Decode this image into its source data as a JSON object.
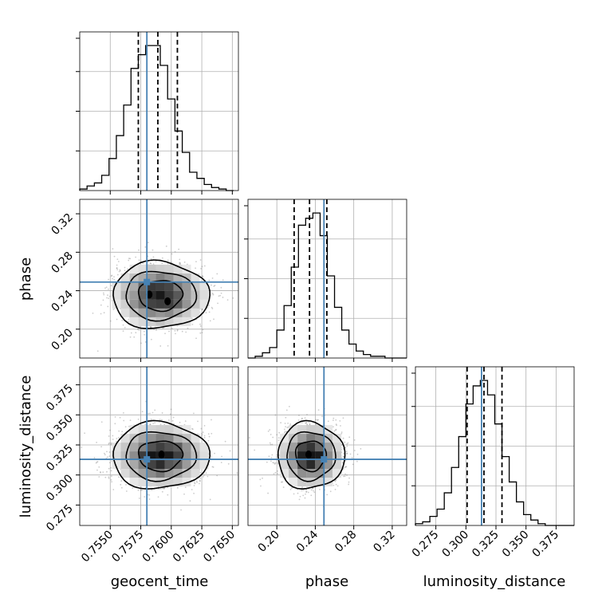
{
  "chart_data": {
    "type": "corner",
    "parameters": [
      "geocent_time",
      "phase",
      "luminosity_distance"
    ],
    "truth_color": "#4682b4",
    "truths": {
      "geocent_time": 0.758,
      "phase": 0.249,
      "luminosity_distance": 0.313
    },
    "quantiles": {
      "geocent_time": [
        0.7573,
        0.7589,
        0.7605
      ],
      "phase": [
        0.218,
        0.234,
        0.252
      ],
      "luminosity_distance": [
        0.301,
        0.315,
        0.33
      ]
    },
    "ranges": {
      "geocent_time": [
        0.7525,
        0.7655
      ],
      "phase": [
        0.17,
        0.335
      ],
      "luminosity_distance": [
        0.258,
        0.39
      ]
    },
    "ticks": {
      "geocent_time": [
        "0.7550",
        "0.7575",
        "0.7600",
        "0.7625",
        "0.7650"
      ],
      "phase": [
        "0.20",
        "0.24",
        "0.28",
        "0.32"
      ],
      "luminosity_distance": [
        "0.275",
        "0.300",
        "0.325",
        "0.350",
        "0.375"
      ]
    },
    "tick_values": {
      "geocent_time": [
        0.755,
        0.7575,
        0.76,
        0.7625,
        0.765
      ],
      "phase": [
        0.2,
        0.24,
        0.28,
        0.32
      ],
      "luminosity_distance": [
        0.275,
        0.3,
        0.325,
        0.35,
        0.375
      ]
    },
    "hist": {
      "geocent_time": {
        "edges": [
          0.7525,
          0.7531,
          0.7537,
          0.7543,
          0.7549,
          0.7555,
          0.7561,
          0.7567,
          0.7573,
          0.7579,
          0.7585,
          0.7591,
          0.7597,
          0.7603,
          0.7609,
          0.7615,
          0.7621,
          0.7627,
          0.7633,
          0.7639,
          0.7645,
          0.7651
        ],
        "counts": [
          1,
          3,
          5,
          10,
          21,
          36,
          56,
          80,
          89,
          95,
          95,
          82,
          60,
          39,
          25,
          12,
          8,
          4,
          2,
          1,
          0
        ]
      },
      "phase": {
        "edges": [
          0.17,
          0.1775,
          0.185,
          0.1925,
          0.2,
          0.2075,
          0.215,
          0.2225,
          0.23,
          0.2375,
          0.245,
          0.2525,
          0.26,
          0.2675,
          0.275,
          0.2825,
          0.29,
          0.2975,
          0.305,
          0.3125,
          0.32,
          0.3275,
          0.335
        ],
        "counts": [
          0,
          1,
          3,
          6,
          16,
          30,
          52,
          76,
          80,
          83,
          70,
          47,
          29,
          16,
          8,
          4,
          2,
          1,
          1,
          0,
          0,
          0
        ]
      },
      "luminosity_distance": {
        "edges": [
          0.258,
          0.264,
          0.27,
          0.276,
          0.282,
          0.288,
          0.294,
          0.3,
          0.306,
          0.312,
          0.318,
          0.324,
          0.33,
          0.336,
          0.342,
          0.348,
          0.354,
          0.36,
          0.366,
          0.372,
          0.378,
          0.384,
          0.39
        ],
        "counts": [
          1,
          2,
          5,
          9,
          18,
          32,
          49,
          67,
          77,
          80,
          72,
          56,
          38,
          24,
          13,
          6,
          3,
          1,
          0,
          0,
          0,
          0
        ]
      }
    },
    "pairs": [
      {
        "x": "geocent_time",
        "y": "phase",
        "center": [
          0.7591,
          0.2352
        ],
        "sigma": [
          0.0018,
          0.0158
        ],
        "levels": [
          1.0,
          1.6,
          2.2
        ],
        "peaks": [
          [
            0.7582,
            0.236
          ],
          [
            0.7597,
            0.229
          ]
        ]
      },
      {
        "x": "geocent_time",
        "y": "luminosity_distance",
        "center": [
          0.7591,
          0.316
        ],
        "sigma": [
          0.0018,
          0.0126
        ],
        "levels": [
          1.0,
          1.6,
          2.2
        ],
        "peaks": [
          [
            0.7592,
            0.317
          ]
        ]
      },
      {
        "x": "phase",
        "y": "luminosity_distance",
        "center": [
          0.2352,
          0.316
        ],
        "sigma": [
          0.0158,
          0.0126
        ],
        "levels": [
          1.0,
          1.6,
          2.2
        ],
        "peaks": [
          [
            0.233,
            0.317
          ]
        ]
      }
    ]
  }
}
